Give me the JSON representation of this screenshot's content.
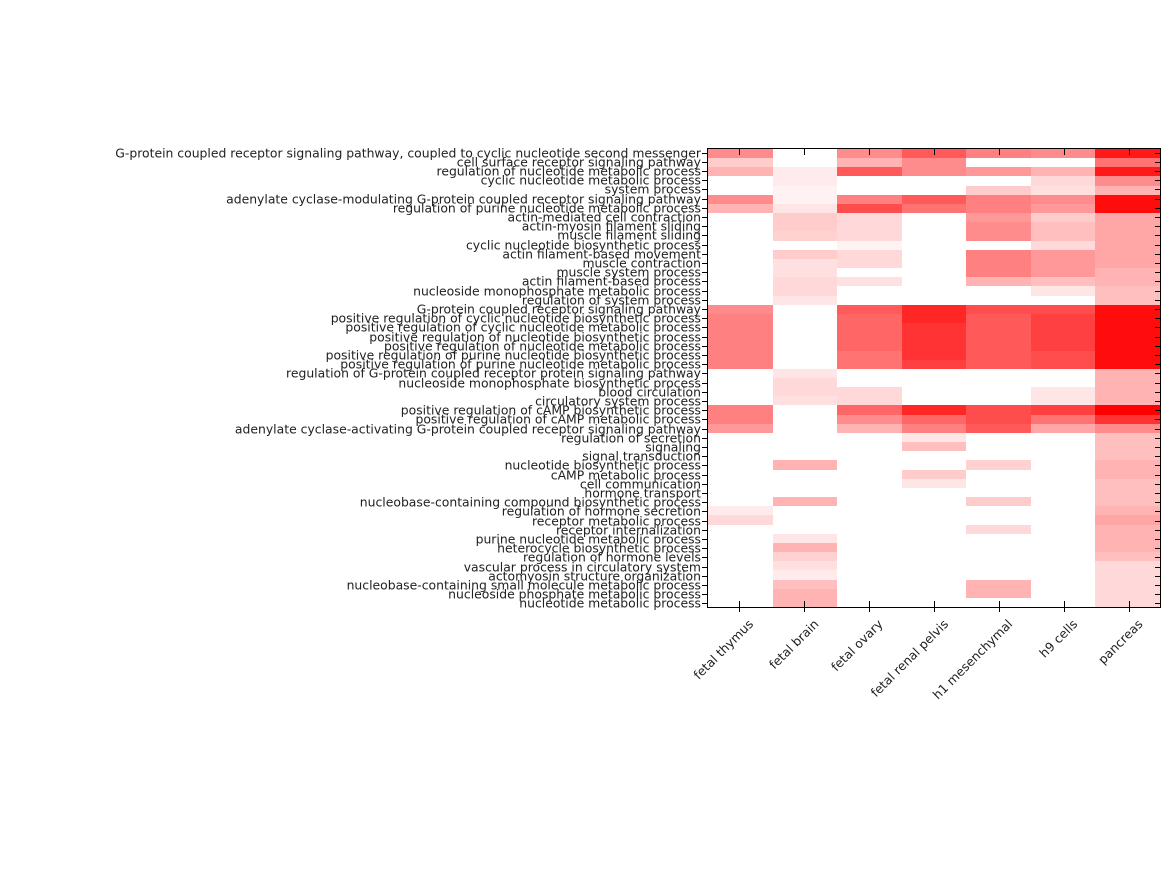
{
  "figure": {
    "background": "#ffffff",
    "text_color": "#212121",
    "axis_color": "#000000"
  },
  "chart_data": {
    "type": "heatmap",
    "title": "",
    "xlabel": "",
    "ylabel": "",
    "legend": "none",
    "grid": "off",
    "colormap": {
      "min_color": "#ffffff",
      "max_color": "#ff0000",
      "scale": "white-to-red, value 0-1"
    },
    "columns": [
      "fetal thymus",
      "fetal brain",
      "fetal ovary",
      "fetal renal pelvis",
      "h1 mesenchymal",
      "h9 cells",
      "pancreas"
    ],
    "rows": [
      "G-protein coupled receptor signaling pathway, coupled to cyclic nucleotide second messenger",
      "cell surface receptor signaling pathway",
      "regulation of nucleotide metabolic process",
      "cyclic nucleotide metabolic process",
      "system process",
      "adenylate cyclase-modulating G-protein coupled receptor signaling pathway",
      "regulation of purine nucleotide metabolic process",
      "actin-mediated cell contraction",
      "actin-myosin filament sliding",
      "muscle filament sliding",
      "cyclic nucleotide biosynthetic process",
      "actin filament-based movement",
      "muscle contraction",
      "muscle system process",
      "actin filament-based process",
      "nucleoside monophosphate metabolic process",
      "regulation of system process",
      "G-protein coupled receptor signaling pathway",
      "positive regulation of cyclic nucleotide biosynthetic process",
      "positive regulation of cyclic nucleotide metabolic process",
      "positive regulation of nucleotide biosynthetic process",
      "positive regulation of nucleotide metabolic process",
      "positive regulation of purine nucleotide biosynthetic process",
      "positive regulation of purine nucleotide metabolic process",
      "regulation of G-protein coupled receptor protein signaling pathway",
      "nucleoside monophosphate biosynthetic process",
      "blood circulation",
      "circulatory system process",
      "positive regulation of cAMP biosynthetic process",
      "positive regulation of cAMP metabolic process",
      "adenylate cyclase-activating G-protein coupled receptor signaling pathway",
      "regulation of secretion",
      "signaling",
      "signal transduction",
      "nucleotide biosynthetic process",
      "cAMP metabolic process",
      "cell communication",
      "hormone transport",
      "nucleobase-containing compound biosynthetic process",
      "regulation of hormone secretion",
      "receptor metabolic process",
      "receptor internalization",
      "purine nucleotide metabolic process",
      "heterocycle biosynthetic process",
      "regulation of hormone levels",
      "vascular process in circulatory system",
      "actomyosin structure organization",
      "nucleobase-containing small molecule metabolic process",
      "nucleoside phosphate metabolic process",
      "nucleotide metabolic process"
    ],
    "values": [
      [
        0.45,
        0,
        0.45,
        0.65,
        0.5,
        0.45,
        0.9
      ],
      [
        0.2,
        0,
        0.3,
        0.45,
        0,
        0,
        0.55
      ],
      [
        0.3,
        0.08,
        0.65,
        0.45,
        0.4,
        0.3,
        0.9
      ],
      [
        0,
        0.08,
        0,
        0,
        0,
        0.15,
        0.45
      ],
      [
        0,
        0.05,
        0,
        0,
        0.2,
        0.12,
        0.3
      ],
      [
        0.45,
        0.05,
        0.5,
        0.65,
        0.5,
        0.45,
        0.95
      ],
      [
        0.3,
        0.1,
        0.7,
        0.55,
        0.5,
        0.4,
        0.95
      ],
      [
        0,
        0.2,
        0.15,
        0,
        0.4,
        0.2,
        0.35
      ],
      [
        0,
        0.2,
        0.15,
        0,
        0.45,
        0.25,
        0.35
      ],
      [
        0,
        0.18,
        0.15,
        0,
        0.45,
        0.25,
        0.35
      ],
      [
        0,
        0,
        0.05,
        0,
        0,
        0.15,
        0.35
      ],
      [
        0,
        0.2,
        0.15,
        0,
        0.5,
        0.4,
        0.35
      ],
      [
        0,
        0.12,
        0.15,
        0,
        0.5,
        0.4,
        0.35
      ],
      [
        0,
        0.12,
        0,
        0,
        0.5,
        0.4,
        0.3
      ],
      [
        0,
        0.15,
        0.12,
        0,
        0.3,
        0.25,
        0.3
      ],
      [
        0,
        0.15,
        0,
        0,
        0,
        0.1,
        0.25
      ],
      [
        0,
        0.1,
        0,
        0,
        0,
        0,
        0.25
      ],
      [
        0.45,
        0,
        0.65,
        0.85,
        0.7,
        0.7,
        0.95
      ],
      [
        0.5,
        0,
        0.6,
        0.85,
        0.65,
        0.75,
        0.95
      ],
      [
        0.5,
        0,
        0.6,
        0.8,
        0.65,
        0.75,
        0.95
      ],
      [
        0.5,
        0,
        0.6,
        0.8,
        0.65,
        0.75,
        0.95
      ],
      [
        0.5,
        0,
        0.6,
        0.8,
        0.65,
        0.75,
        0.95
      ],
      [
        0.5,
        0,
        0.55,
        0.8,
        0.65,
        0.7,
        0.95
      ],
      [
        0.5,
        0,
        0.55,
        0.75,
        0.65,
        0.7,
        0.95
      ],
      [
        0,
        0.1,
        0,
        0,
        0,
        0,
        0.3
      ],
      [
        0,
        0.15,
        0,
        0,
        0,
        0,
        0.3
      ],
      [
        0,
        0.15,
        0.15,
        0,
        0,
        0.1,
        0.3
      ],
      [
        0,
        0.12,
        0.15,
        0,
        0,
        0.1,
        0.3
      ],
      [
        0.5,
        0,
        0.6,
        0.85,
        0.7,
        0.75,
        1.0
      ],
      [
        0.5,
        0,
        0.45,
        0.6,
        0.7,
        0.55,
        0.8
      ],
      [
        0.4,
        0,
        0.3,
        0.5,
        0.65,
        0.35,
        0.45
      ],
      [
        0,
        0,
        0,
        0.1,
        0,
        0,
        0.25
      ],
      [
        0,
        0,
        0,
        0.25,
        0,
        0,
        0.25
      ],
      [
        0,
        0,
        0,
        0,
        0,
        0,
        0.25
      ],
      [
        0,
        0.3,
        0,
        0,
        0.18,
        0,
        0.3
      ],
      [
        0,
        0,
        0,
        0.2,
        0,
        0,
        0.3
      ],
      [
        0,
        0,
        0,
        0.1,
        0,
        0,
        0.25
      ],
      [
        0,
        0,
        0,
        0,
        0,
        0,
        0.25
      ],
      [
        0,
        0.3,
        0,
        0,
        0.2,
        0,
        0.25
      ],
      [
        0.08,
        0,
        0,
        0,
        0,
        0,
        0.3
      ],
      [
        0.15,
        0,
        0,
        0,
        0,
        0,
        0.35
      ],
      [
        0,
        0,
        0,
        0,
        0.15,
        0,
        0.3
      ],
      [
        0,
        0.1,
        0,
        0,
        0,
        0,
        0.3
      ],
      [
        0,
        0.3,
        0,
        0,
        0,
        0,
        0.3
      ],
      [
        0,
        0.18,
        0,
        0,
        0,
        0,
        0.25
      ],
      [
        0,
        0.12,
        0,
        0,
        0,
        0,
        0.15
      ],
      [
        0,
        0.08,
        0,
        0,
        0,
        0,
        0.15
      ],
      [
        0,
        0.25,
        0,
        0,
        0.3,
        0,
        0.15
      ],
      [
        0,
        0.3,
        0,
        0,
        0.3,
        0,
        0.15
      ],
      [
        0,
        0.3,
        0,
        0,
        0,
        0,
        0.15
      ]
    ]
  }
}
